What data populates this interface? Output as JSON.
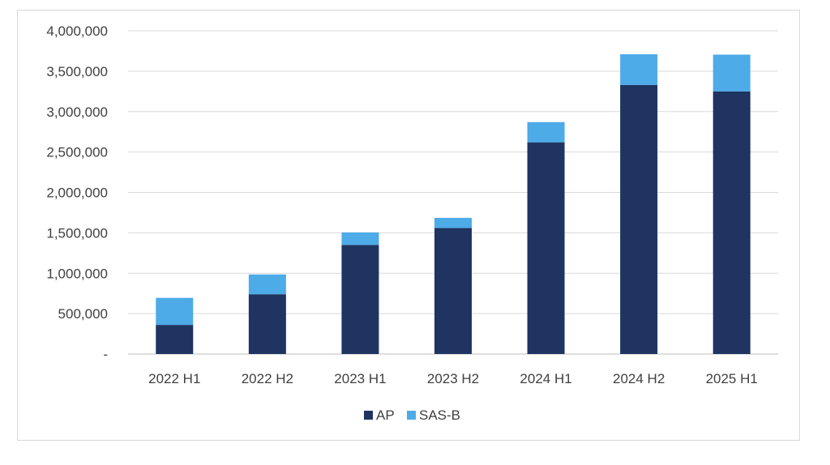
{
  "chart_data": {
    "type": "bar",
    "stacked": true,
    "categories": [
      "2022 H1",
      "2022 H2",
      "2023 H1",
      "2023 H2",
      "2024 H1",
      "2024 H2",
      "2025 H1"
    ],
    "series": [
      {
        "name": "AP",
        "color": "#1f3461",
        "values": [
          360000,
          740000,
          1350000,
          1560000,
          2620000,
          3330000,
          3250000
        ]
      },
      {
        "name": "SAS-B",
        "color": "#4dabe8",
        "values": [
          335000,
          245000,
          155000,
          125000,
          250000,
          380000,
          455000
        ]
      }
    ],
    "ylim": [
      0,
      4000000
    ],
    "yticks": [
      0,
      500000,
      1000000,
      1500000,
      2000000,
      2500000,
      3000000,
      3500000,
      4000000
    ],
    "ytick_labels": [
      "-",
      "500,000",
      "1,000,000",
      "1,500,000",
      "2,000,000",
      "2,500,000",
      "3,000,000",
      "3,500,000",
      "4,000,000"
    ],
    "grid": true,
    "gridline_color": "#d9d9d9",
    "legend_position": "bottom",
    "title": "",
    "xlabel": "",
    "ylabel": ""
  }
}
